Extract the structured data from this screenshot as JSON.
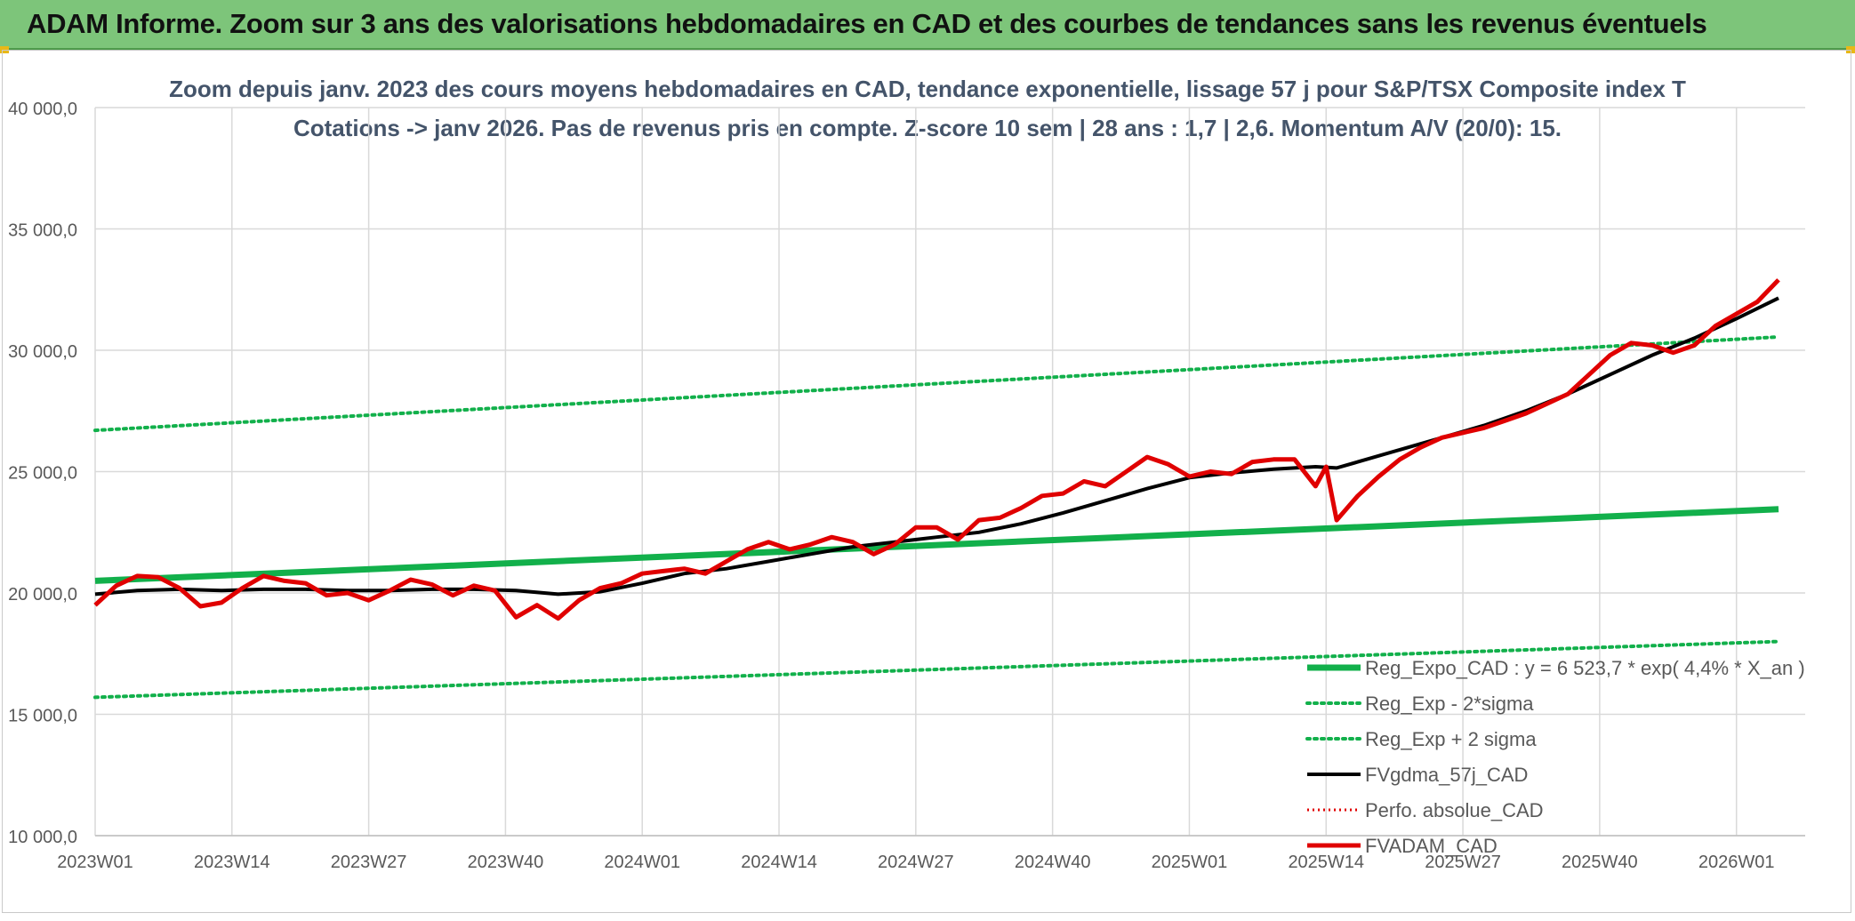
{
  "banner": {
    "title": "ADAM Informe. Zoom sur 3 ans des valorisations hebdomadaires en CAD et des courbes de tendances sans les revenus éventuels"
  },
  "colors": {
    "banner_bg": "#7dc57a",
    "reg_expo": "#12b04b",
    "sigma": "#12b04b",
    "fvgdma": "#000000",
    "perfo": "#e00000",
    "fvadam": "#e00000",
    "grid": "#d9d9d9",
    "axis_text": "#595959",
    "title_text": "#44546a"
  },
  "chart_data": {
    "type": "line",
    "title": "Zoom depuis janv. 2023 des cours moyens hebdomadaires en CAD, tendance exponentielle, lissage 57 j pour S&P/TSX Composite index T",
    "subtitle": "Cotations -> janv 2026. Pas de revenus pris en compte. Z-score 10 sem | 28 ans : 1,7 | 2,6. Momentum A/V (20/0): 15.",
    "ylim": [
      10000,
      40000
    ],
    "y_ticks": [
      "10 000,0",
      "15 000,0",
      "20 000,0",
      "25 000,0",
      "30 000,0",
      "35 000,0",
      "40 000,0"
    ],
    "y_tick_values": [
      10000,
      15000,
      20000,
      25000,
      30000,
      35000,
      40000
    ],
    "x_ticks": [
      "2023W01",
      "2023W14",
      "2023W27",
      "2023W40",
      "2024W01",
      "2024W14",
      "2024W27",
      "2024W40",
      "2025W01",
      "2025W14",
      "2025W27",
      "2025W40",
      "2026W01"
    ],
    "x_tick_weeks": [
      0,
      13,
      26,
      39,
      52,
      65,
      78,
      91,
      104,
      117,
      130,
      143,
      156
    ],
    "x_max_week": 160,
    "series": [
      {
        "name": "Reg_Expo_CAD : y = 6 523,7 * exp( 4,4% *  X_an )",
        "style": "solid-thick",
        "x": [
          0,
          160
        ],
        "values": [
          20500,
          23450
        ]
      },
      {
        "name": "Reg_Exp - 2*sigma",
        "style": "dotted",
        "x": [
          0,
          160
        ],
        "values": [
          15700,
          18000
        ]
      },
      {
        "name": "Reg_Exp + 2 sigma",
        "style": "dotted",
        "x": [
          0,
          160
        ],
        "values": [
          26700,
          30550
        ]
      },
      {
        "name": "FVgdma_57j_CAD",
        "style": "solid",
        "x": [
          0,
          4,
          8,
          12,
          16,
          20,
          24,
          28,
          32,
          36,
          40,
          44,
          48,
          52,
          56,
          60,
          64,
          68,
          72,
          76,
          80,
          84,
          88,
          92,
          96,
          100,
          104,
          108,
          112,
          116,
          118,
          120,
          124,
          128,
          132,
          136,
          140,
          144,
          148,
          152,
          156,
          160
        ],
        "values": [
          19950,
          20100,
          20150,
          20100,
          20150,
          20150,
          20100,
          20100,
          20150,
          20150,
          20100,
          19950,
          20050,
          20400,
          20800,
          21000,
          21300,
          21600,
          21900,
          22100,
          22300,
          22500,
          22850,
          23300,
          23800,
          24300,
          24750,
          24950,
          25100,
          25200,
          25150,
          25400,
          25900,
          26400,
          26900,
          27500,
          28200,
          29000,
          29800,
          30500,
          31300,
          32150
        ]
      },
      {
        "name": "Perfo. absolue_CAD",
        "style": "dotted",
        "x": [],
        "values": []
      },
      {
        "name": "FVADAM_CAD",
        "style": "solid-thick",
        "x": [
          0,
          2,
          4,
          6,
          8,
          10,
          12,
          14,
          16,
          18,
          20,
          22,
          24,
          26,
          28,
          30,
          32,
          34,
          36,
          38,
          40,
          42,
          44,
          46,
          48,
          50,
          52,
          54,
          56,
          58,
          60,
          62,
          64,
          66,
          68,
          70,
          72,
          74,
          76,
          78,
          80,
          82,
          84,
          86,
          88,
          90,
          92,
          94,
          96,
          98,
          100,
          102,
          104,
          106,
          108,
          110,
          112,
          114,
          116,
          117,
          118,
          120,
          122,
          124,
          126,
          128,
          130,
          132,
          134,
          136,
          138,
          140,
          142,
          144,
          146,
          148,
          150,
          152,
          154,
          156,
          158,
          160
        ],
        "values": [
          19500,
          20300,
          20700,
          20650,
          20200,
          19450,
          19600,
          20200,
          20700,
          20500,
          20400,
          19900,
          20000,
          19700,
          20100,
          20550,
          20350,
          19900,
          20300,
          20100,
          19000,
          19500,
          18950,
          19700,
          20200,
          20400,
          20800,
          20900,
          21000,
          20800,
          21300,
          21800,
          22100,
          21800,
          22000,
          22300,
          22100,
          21600,
          22000,
          22700,
          22700,
          22200,
          23000,
          23100,
          23500,
          24000,
          24100,
          24600,
          24400,
          25000,
          25600,
          25300,
          24800,
          25000,
          24900,
          25400,
          25500,
          25500,
          24400,
          25200,
          23000,
          24000,
          24800,
          25500,
          26000,
          26400,
          26600,
          26800,
          27100,
          27400,
          27800,
          28200,
          29000,
          29800,
          30300,
          30200,
          29900,
          30200,
          31000,
          31500,
          32000,
          32900
        ]
      }
    ]
  }
}
